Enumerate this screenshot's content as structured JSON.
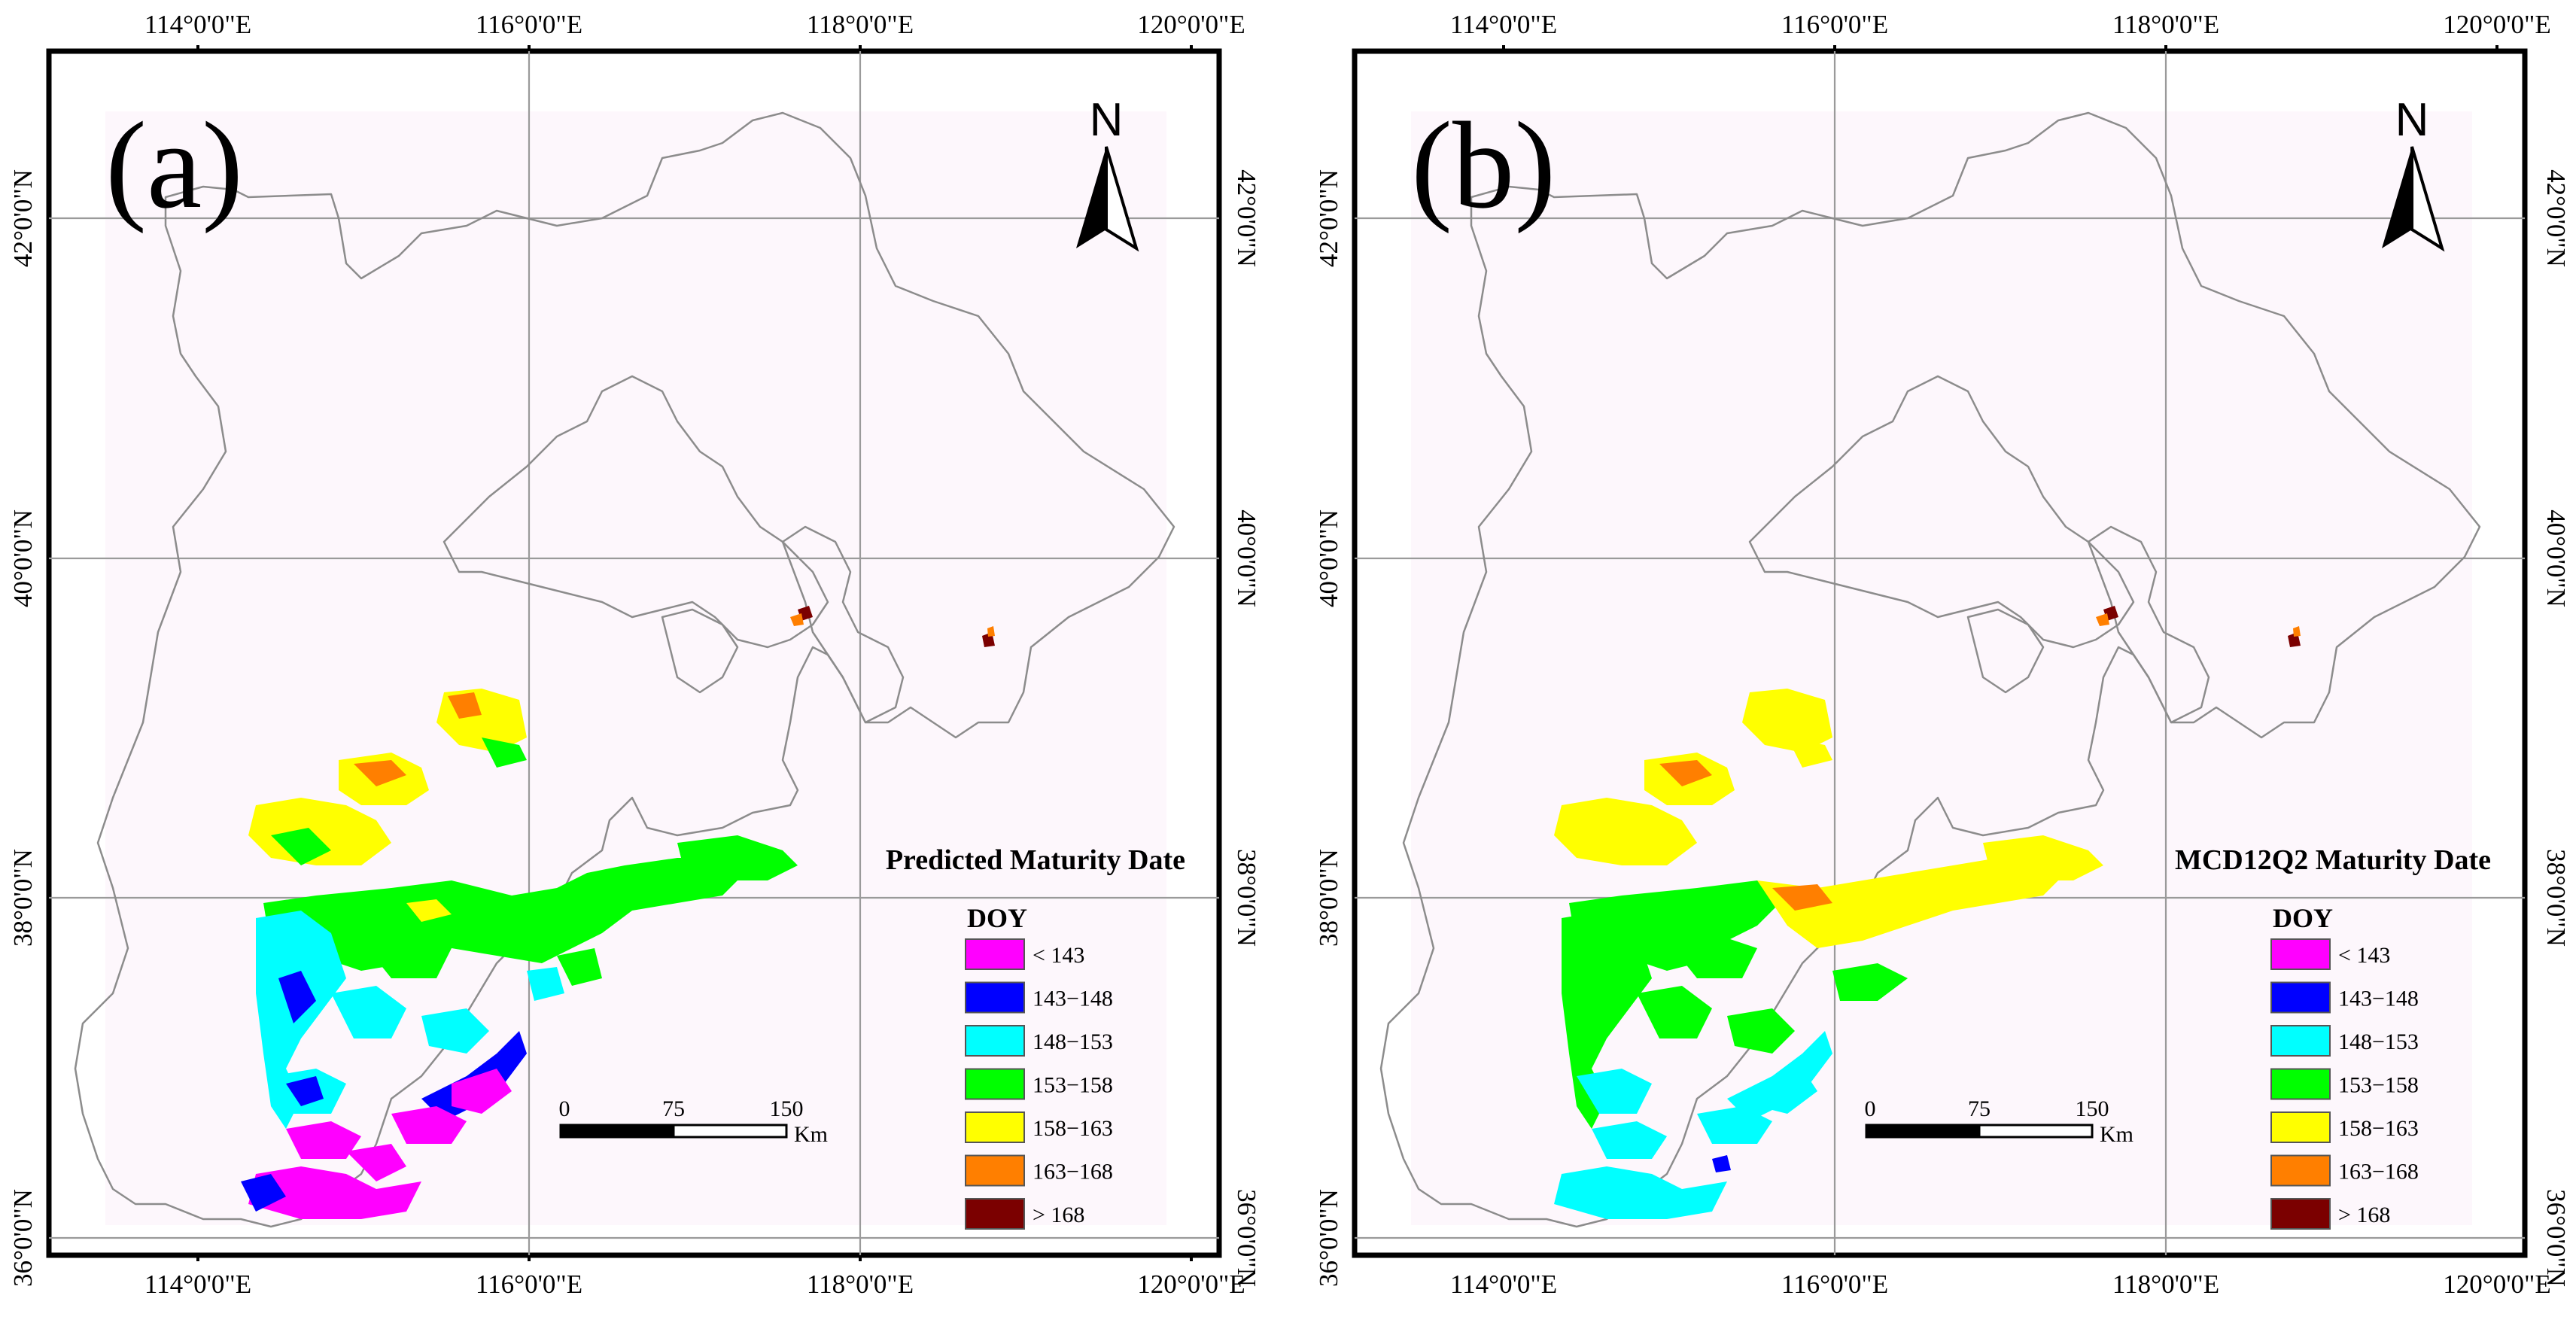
{
  "figure": {
    "lon_labels": [
      "114°0'0\"E",
      "116°0'0\"E",
      "118°0'0\"E",
      "120°0'0\"E"
    ],
    "lat_labels": [
      "36°0'0\"N",
      "38°0'0\"N",
      "40°0'0\"N",
      "42°0'0\"N"
    ],
    "north_label": "N",
    "legend_title": "DOY",
    "legend": [
      {
        "label": "< 143",
        "color": "#ff00ff"
      },
      {
        "label": "143−148",
        "color": "#0000ff"
      },
      {
        "label": "148−153",
        "color": "#00ffff"
      },
      {
        "label": "153−158",
        "color": "#00ff00"
      },
      {
        "label": "158−163",
        "color": "#ffff00"
      },
      {
        "label": "163−168",
        "color": "#ff7f00"
      },
      {
        "label": "> 168",
        "color": "#7b0000"
      }
    ],
    "scale_labels": [
      "0",
      "75",
      "150"
    ],
    "scale_unit": "Km"
  },
  "panels": [
    {
      "label": "(a)",
      "title": "Predicted Maturity Date"
    },
    {
      "label": "(b)",
      "title": "MCD12Q2 Maturity Date"
    }
  ]
}
